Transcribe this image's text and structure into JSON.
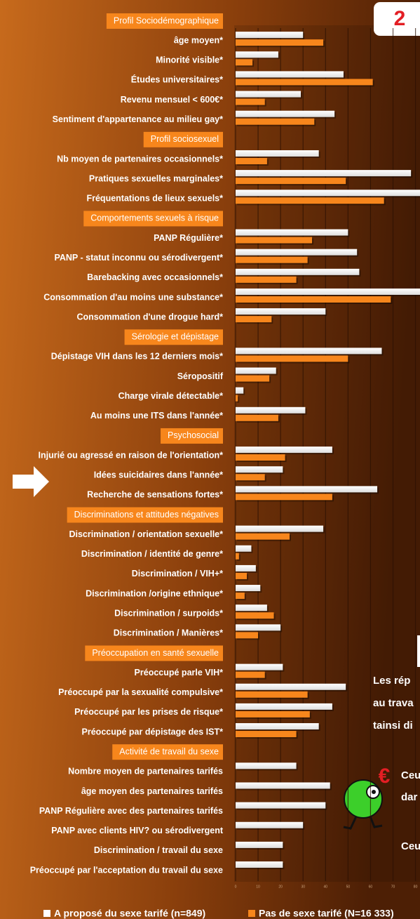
{
  "chart_data": {
    "type": "bar",
    "orientation": "horizontal",
    "badge": "2",
    "groups": [
      {
        "title": "Profil Sociodémographique",
        "categories": [
          "âge moyen*",
          "Minorité visible*",
          "Études universitaires*",
          "Revenu mensuel < 600€*",
          "Sentiment d'appartenance au milieu gay*"
        ]
      },
      {
        "title": "Profil sociosexuel",
        "categories": [
          "Nb moyen de partenaires occasionnels*",
          "Pratiques sexuelles marginales*",
          "Fréquentations de lieux sexuels*"
        ]
      },
      {
        "title": "Comportements sexuels à risque",
        "categories": [
          "PANP Régulière*",
          "PANP -  statut inconnu ou sérodivergent*",
          "Barebacking avec occasionnels*",
          "Consommation d'au moins une substance*",
          "Consommation d'une drogue hard*"
        ]
      },
      {
        "title": "Sérologie et dépistage",
        "categories": [
          "Dépistage VIH dans les 12 derniers mois*",
          "Séropositif",
          "Charge virale détectable*",
          "Au moins une ITS dans l'année*"
        ]
      },
      {
        "title": "Psychosocial",
        "categories": [
          "Injurié ou agressé en raison de l'orientation*",
          "Idées suicidaires dans l'année*",
          "Recherche de sensations fortes*"
        ]
      },
      {
        "title": "Discriminations et attitudes négatives",
        "categories": [
          "Discrimination / orientation sexuelle*",
          "Discrimination / identité de genre*",
          "Discrimination / VIH+*",
          "Discrimination /origine ethnique*",
          "Discrimination / surpoids*",
          "Discrimination  / Manières*"
        ]
      },
      {
        "title": "Préoccupation en santé sexuelle",
        "categories": [
          "Préoccupé parle VIH*",
          "Préoccupé par la sexualité compulsive*",
          "Préoccupé par les prises de risque*",
          "Préoccupé par dépistage des IST*"
        ]
      },
      {
        "title": "Activité de travail du sexe",
        "categories": [
          "Nombre moyen de partenaires tarifés",
          "âge moyen des partenaires tarifés",
          "PANP Régulière avec des partenaires tarifés",
          "PANP avec clients HIV? ou sérodivergent",
          "Discrimination /  travail du sexe",
          "Préoccupé par l'acceptation du travail du sexe"
        ]
      }
    ],
    "series": [
      {
        "name": "A proposé du sexe tarifé (n=849)",
        "color": "#ffffff",
        "values": [
          30,
          19,
          48,
          29,
          44,
          37,
          78,
          82,
          50,
          54,
          55,
          82,
          40,
          65,
          18,
          3.5,
          31,
          43,
          21,
          63,
          39,
          7,
          9,
          11,
          14,
          20,
          21,
          49,
          43,
          37,
          27,
          42,
          40,
          30,
          21,
          21
        ]
      },
      {
        "name": "Pas de sexe tarifé (N=16 333)",
        "color": "#f7861c",
        "values": [
          39,
          7.5,
          61,
          13,
          35,
          14,
          49,
          66,
          34,
          32,
          27,
          69,
          16,
          50,
          15,
          1,
          19,
          22,
          13,
          43,
          24,
          1.5,
          5,
          4,
          17,
          10,
          13,
          32,
          33,
          27,
          null,
          null,
          null,
          null,
          null,
          null
        ]
      }
    ],
    "xlim": [
      0,
      82
    ],
    "xticks": [
      0,
      10,
      20,
      30,
      40,
      50,
      60,
      70,
      80
    ],
    "grid": true,
    "side_text": [
      "Les  rép",
      "au trava",
      "tainsi di",
      "Ceu",
      "dar",
      "Ceu"
    ]
  }
}
